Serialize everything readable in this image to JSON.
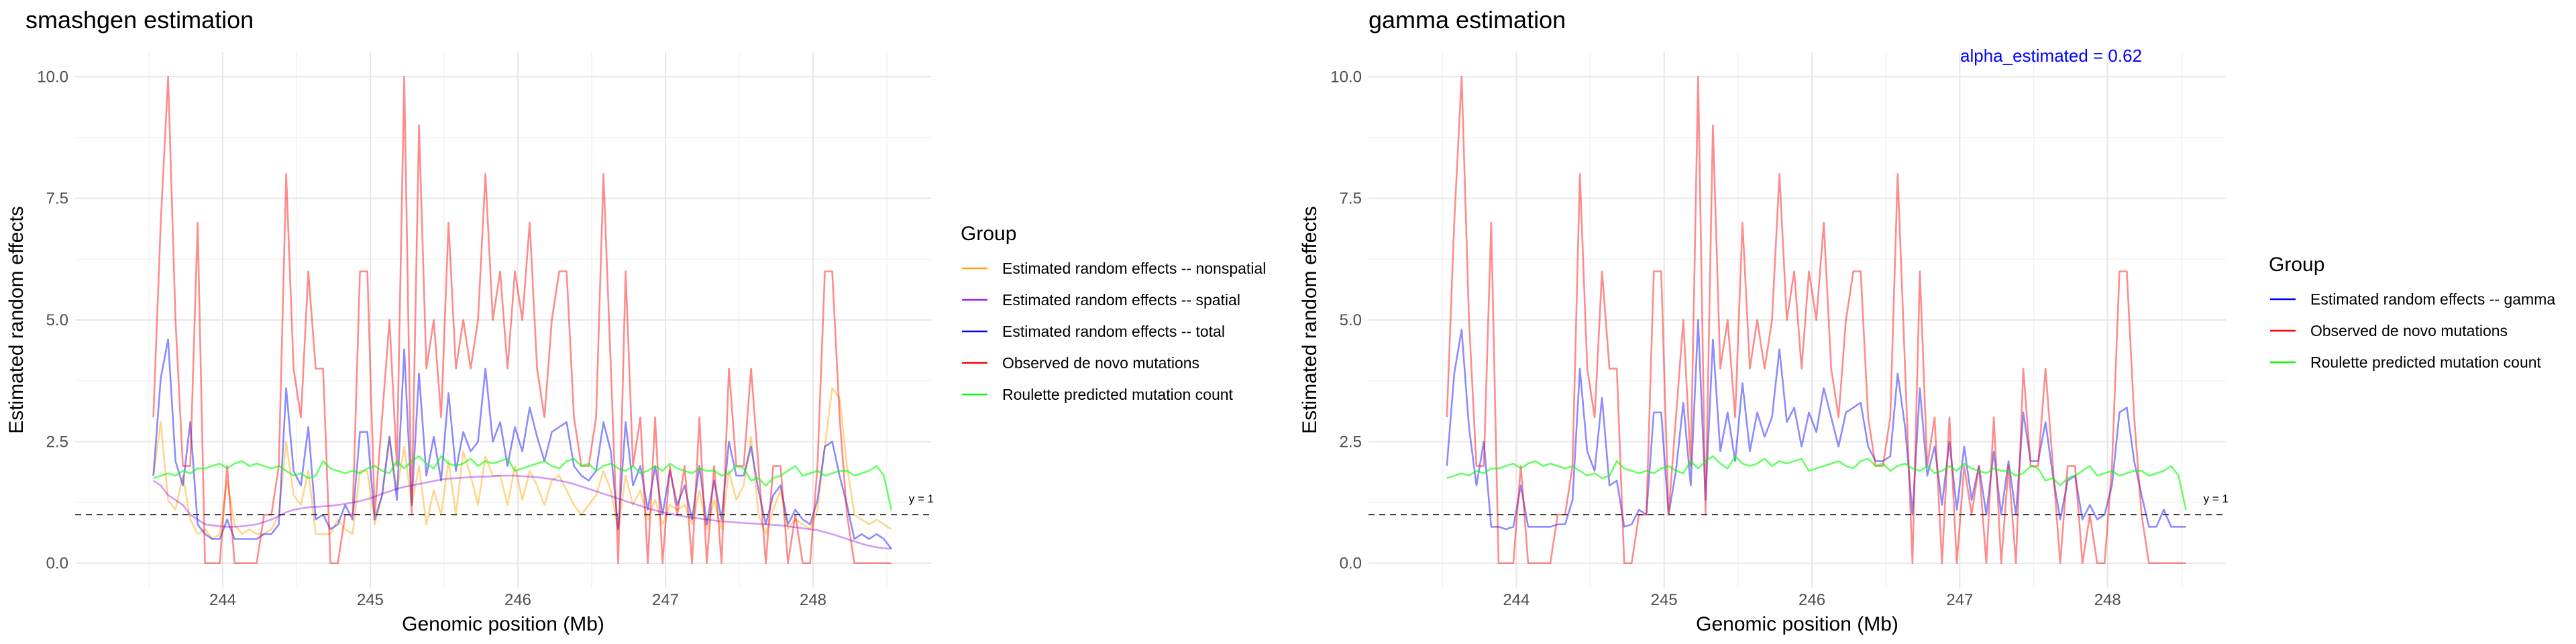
{
  "colors": {
    "nonspatial": "#ffa500",
    "spatial": "#a020f0",
    "total": "#0000ff",
    "observed": "#ff0000",
    "roulette": "#00ff00",
    "gamma": "#0000ff",
    "refline": "#333333",
    "annotation": "#0000ff"
  },
  "chart_data": [
    {
      "type": "line",
      "title": "smashgen estimation",
      "xlabel": "Genomic position (Mb)",
      "ylabel": "Estimated random effects",
      "xlim": [
        243.0,
        248.8
      ],
      "ylim": [
        -0.5,
        10.5
      ],
      "xticks": [
        244,
        245,
        246,
        247,
        248
      ],
      "yticks": [
        0.0,
        2.5,
        5.0,
        7.5,
        10.0
      ],
      "ytick_labels": [
        "0.0",
        "2.5",
        "5.0",
        "7.5",
        "10.0"
      ],
      "grid": true,
      "legend_title": "Group",
      "legend_position": "right",
      "hline": {
        "y": 1,
        "label": "y = 1",
        "style": "dashed"
      },
      "x": [
        243.53,
        243.58,
        243.63,
        243.68,
        243.73,
        243.78,
        243.83,
        243.88,
        243.93,
        243.98,
        244.03,
        244.08,
        244.13,
        244.18,
        244.23,
        244.28,
        244.33,
        244.38,
        244.43,
        244.48,
        244.53,
        244.58,
        244.63,
        244.68,
        244.73,
        244.78,
        244.83,
        244.88,
        244.93,
        244.98,
        245.03,
        245.08,
        245.13,
        245.18,
        245.23,
        245.28,
        245.33,
        245.38,
        245.43,
        245.48,
        245.53,
        245.58,
        245.63,
        245.68,
        245.73,
        245.78,
        245.83,
        245.88,
        245.93,
        245.98,
        246.03,
        246.08,
        246.13,
        246.18,
        246.23,
        246.28,
        246.33,
        246.38,
        246.43,
        246.48,
        246.53,
        246.58,
        246.63,
        246.68,
        246.73,
        246.78,
        246.83,
        246.88,
        246.93,
        246.98,
        247.03,
        247.08,
        247.13,
        247.18,
        247.23,
        247.28,
        247.33,
        247.38,
        247.43,
        247.48,
        247.53,
        247.58,
        247.63,
        247.68,
        247.73,
        247.78,
        247.83,
        247.88,
        247.93,
        247.98,
        248.03,
        248.08,
        248.13,
        248.18,
        248.23,
        248.28,
        248.33,
        248.38,
        248.43,
        248.48,
        248.53
      ],
      "series": [
        {
          "name": "Estimated random effects -- nonspatial",
          "color_key": "nonspatial",
          "values": [
            1.8,
            2.9,
            1.3,
            1.1,
            1.8,
            0.9,
            0.6,
            0.7,
            0.5,
            0.6,
            1.7,
            0.8,
            0.6,
            0.7,
            0.6,
            0.6,
            0.7,
            1.0,
            2.5,
            1.4,
            1.2,
            1.9,
            0.6,
            0.6,
            0.6,
            0.9,
            0.7,
            0.6,
            1.9,
            1.9,
            0.8,
            1.4,
            2.6,
            1.5,
            2.4,
            1.2,
            2.0,
            0.8,
            1.5,
            1.0,
            2.1,
            1.0,
            2.3,
            1.8,
            1.2,
            2.2,
            1.8,
            1.8,
            1.2,
            2.0,
            1.3,
            1.9,
            1.6,
            1.2,
            1.7,
            1.8,
            1.5,
            1.2,
            1.0,
            1.2,
            1.4,
            1.9,
            1.5,
            0.7,
            1.8,
            1.2,
            1.5,
            0.9,
            1.3,
            0.8,
            1.2,
            1.1,
            1.2,
            0.8,
            1.5,
            0.7,
            1.3,
            0.7,
            1.9,
            1.3,
            1.6,
            2.6,
            1.0,
            0.6,
            1.1,
            1.5,
            0.7,
            0.9,
            0.8,
            0.7,
            1.1,
            2.4,
            3.6,
            3.4,
            2.0,
            1.0,
            0.9,
            0.8,
            0.9,
            0.8,
            0.7
          ]
        },
        {
          "name": "Estimated random effects -- spatial",
          "color_key": "spatial",
          "values": [
            1.7,
            1.6,
            1.4,
            1.3,
            1.2,
            1.0,
            0.9,
            0.8,
            0.78,
            0.76,
            0.75,
            0.75,
            0.76,
            0.78,
            0.8,
            0.85,
            0.9,
            0.97,
            1.05,
            1.1,
            1.13,
            1.15,
            1.16,
            1.17,
            1.18,
            1.2,
            1.22,
            1.25,
            1.28,
            1.32,
            1.37,
            1.43,
            1.48,
            1.53,
            1.57,
            1.6,
            1.63,
            1.66,
            1.69,
            1.72,
            1.74,
            1.75,
            1.76,
            1.77,
            1.78,
            1.78,
            1.79,
            1.8,
            1.8,
            1.8,
            1.79,
            1.78,
            1.77,
            1.75,
            1.73,
            1.7,
            1.67,
            1.63,
            1.58,
            1.53,
            1.48,
            1.43,
            1.38,
            1.33,
            1.28,
            1.23,
            1.18,
            1.13,
            1.09,
            1.05,
            1.02,
            0.99,
            0.96,
            0.94,
            0.92,
            0.9,
            0.88,
            0.86,
            0.85,
            0.84,
            0.83,
            0.82,
            0.81,
            0.8,
            0.79,
            0.78,
            0.76,
            0.74,
            0.72,
            0.7,
            0.68,
            0.64,
            0.6,
            0.55,
            0.5,
            0.45,
            0.4,
            0.36,
            0.33,
            0.31,
            0.3
          ]
        },
        {
          "name": "Estimated random effects -- total",
          "color_key": "total",
          "values": [
            1.8,
            3.8,
            4.6,
            2.1,
            1.6,
            2.9,
            0.8,
            0.6,
            0.5,
            0.5,
            0.9,
            0.5,
            0.5,
            0.5,
            0.5,
            0.6,
            0.6,
            0.8,
            3.6,
            1.9,
            1.6,
            2.8,
            0.9,
            1.0,
            0.7,
            0.8,
            1.2,
            0.9,
            2.7,
            2.7,
            0.9,
            1.4,
            2.6,
            1.3,
            4.4,
            1.2,
            3.9,
            1.8,
            2.6,
            1.7,
            3.5,
            1.9,
            2.7,
            2.3,
            2.5,
            4.0,
            2.5,
            2.9,
            2.0,
            2.8,
            2.3,
            3.2,
            2.6,
            2.1,
            2.7,
            2.8,
            2.9,
            2.0,
            1.8,
            1.7,
            1.9,
            2.9,
            2.3,
            0.7,
            2.9,
            1.6,
            2.0,
            1.1,
            2.0,
            1.0,
            1.9,
            1.2,
            1.6,
            0.9,
            2.0,
            0.8,
            1.7,
            0.9,
            2.5,
            1.8,
            1.8,
            2.4,
            1.5,
            0.8,
            1.4,
            1.6,
            0.8,
            1.1,
            0.9,
            0.8,
            1.3,
            2.4,
            2.5,
            1.8,
            1.2,
            0.5,
            0.6,
            0.5,
            0.6,
            0.5,
            0.3
          ]
        },
        {
          "name": "Observed de novo mutations",
          "color_key": "observed",
          "values": [
            3,
            7,
            10,
            5,
            2,
            2,
            7,
            0,
            0,
            0,
            2,
            0,
            0,
            0,
            0,
            1,
            1,
            2,
            8,
            4,
            3,
            6,
            4,
            4,
            0,
            0,
            1,
            1,
            6,
            6,
            1,
            3,
            5,
            2,
            10,
            1,
            9,
            4,
            5,
            3,
            7,
            4,
            5,
            4,
            5,
            8,
            5,
            6,
            4,
            6,
            5,
            7,
            4,
            3,
            5,
            6,
            6,
            3,
            2,
            2,
            3,
            8,
            4,
            0,
            6,
            2,
            3,
            0,
            3,
            0,
            2,
            1,
            2,
            0,
            3,
            0,
            2,
            0,
            4,
            2,
            2,
            4,
            2,
            0,
            2,
            2,
            0,
            1,
            0,
            0,
            2,
            6,
            6,
            3,
            1,
            0,
            0,
            0,
            0,
            0,
            0
          ]
        },
        {
          "name": "Roulette predicted mutation count",
          "color_key": "roulette",
          "values": [
            1.75,
            1.8,
            1.85,
            1.8,
            1.9,
            1.85,
            1.95,
            1.95,
            2.0,
            2.05,
            1.95,
            2.05,
            2.1,
            2.0,
            2.05,
            2.0,
            1.95,
            2.0,
            1.9,
            1.8,
            1.85,
            1.75,
            1.8,
            2.1,
            1.95,
            1.9,
            1.85,
            1.9,
            1.85,
            1.95,
            2.0,
            1.9,
            1.85,
            2.1,
            1.95,
            2.1,
            2.2,
            2.05,
            1.95,
            2.2,
            2.05,
            2.0,
            2.05,
            2.15,
            2.0,
            2.1,
            2.05,
            2.1,
            2.15,
            1.9,
            1.95,
            2.0,
            2.05,
            2.1,
            2.0,
            1.95,
            2.1,
            2.15,
            2.0,
            2.05,
            1.9,
            2.0,
            2.05,
            1.95,
            1.9,
            2.0,
            1.85,
            1.9,
            2.0,
            1.9,
            2.05,
            1.95,
            1.9,
            1.85,
            1.95,
            1.9,
            1.9,
            1.8,
            1.85,
            2.0,
            1.95,
            1.7,
            1.75,
            1.6,
            1.75,
            1.8,
            1.9,
            2.0,
            1.8,
            1.85,
            1.9,
            1.8,
            1.85,
            1.9,
            1.9,
            1.8,
            1.85,
            1.9,
            2.0,
            1.8,
            1.1
          ]
        }
      ]
    },
    {
      "type": "line",
      "title": "gamma estimation",
      "xlabel": "Genomic position (Mb)",
      "ylabel": "Estimated random effects",
      "annotation": "alpha_estimated = 0.62",
      "xlim": [
        243.0,
        248.8
      ],
      "ylim": [
        -0.5,
        10.5
      ],
      "xticks": [
        244,
        245,
        246,
        247,
        248
      ],
      "yticks": [
        0.0,
        2.5,
        5.0,
        7.5,
        10.0
      ],
      "ytick_labels": [
        "0.0",
        "2.5",
        "5.0",
        "7.5",
        "10.0"
      ],
      "grid": true,
      "legend_title": "Group",
      "legend_position": "right",
      "hline": {
        "y": 1,
        "label": "y = 1",
        "style": "dashed"
      },
      "x": [
        243.53,
        243.58,
        243.63,
        243.68,
        243.73,
        243.78,
        243.83,
        243.88,
        243.93,
        243.98,
        244.03,
        244.08,
        244.13,
        244.18,
        244.23,
        244.28,
        244.33,
        244.38,
        244.43,
        244.48,
        244.53,
        244.58,
        244.63,
        244.68,
        244.73,
        244.78,
        244.83,
        244.88,
        244.93,
        244.98,
        245.03,
        245.08,
        245.13,
        245.18,
        245.23,
        245.28,
        245.33,
        245.38,
        245.43,
        245.48,
        245.53,
        245.58,
        245.63,
        245.68,
        245.73,
        245.78,
        245.83,
        245.88,
        245.93,
        245.98,
        246.03,
        246.08,
        246.13,
        246.18,
        246.23,
        246.28,
        246.33,
        246.38,
        246.43,
        246.48,
        246.53,
        246.58,
        246.63,
        246.68,
        246.73,
        246.78,
        246.83,
        246.88,
        246.93,
        246.98,
        247.03,
        247.08,
        247.13,
        247.18,
        247.23,
        247.28,
        247.33,
        247.38,
        247.43,
        247.48,
        247.53,
        247.58,
        247.63,
        247.68,
        247.73,
        247.78,
        247.83,
        247.88,
        247.93,
        247.98,
        248.03,
        248.08,
        248.13,
        248.18,
        248.23,
        248.28,
        248.33,
        248.38,
        248.43,
        248.48,
        248.53
      ],
      "series": [
        {
          "name": "Estimated random effects -- gamma",
          "color_key": "gamma",
          "values": [
            2.0,
            3.9,
            4.8,
            2.8,
            1.6,
            2.5,
            0.75,
            0.75,
            0.7,
            0.75,
            1.6,
            0.75,
            0.75,
            0.75,
            0.75,
            0.8,
            0.8,
            1.3,
            4.0,
            2.3,
            1.9,
            3.4,
            1.6,
            1.7,
            0.75,
            0.8,
            1.1,
            1.0,
            3.1,
            3.1,
            1.0,
            1.9,
            3.3,
            1.6,
            5.0,
            1.3,
            4.6,
            2.3,
            3.1,
            2.1,
            3.7,
            2.3,
            3.1,
            2.6,
            3.0,
            4.4,
            2.9,
            3.2,
            2.4,
            3.1,
            2.7,
            3.6,
            3.0,
            2.4,
            3.1,
            3.2,
            3.3,
            2.4,
            2.1,
            2.1,
            2.2,
            3.9,
            2.8,
            1.0,
            3.6,
            1.8,
            2.4,
            1.2,
            2.5,
            1.1,
            2.4,
            1.3,
            2.0,
            1.0,
            2.3,
            1.0,
            2.1,
            1.0,
            3.1,
            2.1,
            2.1,
            2.9,
            1.8,
            0.9,
            1.7,
            1.8,
            0.9,
            1.2,
            0.9,
            1.0,
            1.6,
            3.1,
            3.2,
            2.1,
            1.4,
            0.75,
            0.75,
            1.1,
            0.75,
            0.75,
            0.75
          ]
        },
        {
          "name": "Observed de novo mutations",
          "color_key": "observed",
          "values": [
            3,
            7,
            10,
            5,
            2,
            2,
            7,
            0,
            0,
            0,
            2,
            0,
            0,
            0,
            0,
            1,
            1,
            2,
            8,
            4,
            3,
            6,
            4,
            4,
            0,
            0,
            1,
            1,
            6,
            6,
            1,
            3,
            5,
            2,
            10,
            1,
            9,
            4,
            5,
            3,
            7,
            4,
            5,
            4,
            5,
            8,
            5,
            6,
            4,
            6,
            5,
            7,
            4,
            3,
            5,
            6,
            6,
            3,
            2,
            2,
            3,
            8,
            4,
            0,
            6,
            2,
            3,
            0,
            3,
            0,
            2,
            1,
            2,
            0,
            3,
            0,
            2,
            0,
            4,
            2,
            2,
            4,
            2,
            0,
            2,
            2,
            0,
            1,
            0,
            0,
            2,
            6,
            6,
            3,
            1,
            0,
            0,
            0,
            0,
            0,
            0
          ]
        },
        {
          "name": "Roulette predicted mutation count",
          "color_key": "roulette",
          "values": [
            1.75,
            1.8,
            1.85,
            1.8,
            1.9,
            1.85,
            1.95,
            1.95,
            2.0,
            2.05,
            1.95,
            2.05,
            2.1,
            2.0,
            2.05,
            2.0,
            1.95,
            2.0,
            1.9,
            1.8,
            1.85,
            1.75,
            1.8,
            2.1,
            1.95,
            1.9,
            1.85,
            1.9,
            1.85,
            1.95,
            2.0,
            1.9,
            1.85,
            2.1,
            1.95,
            2.1,
            2.2,
            2.05,
            1.95,
            2.2,
            2.05,
            2.0,
            2.05,
            2.15,
            2.0,
            2.1,
            2.05,
            2.1,
            2.15,
            1.9,
            1.95,
            2.0,
            2.05,
            2.1,
            2.0,
            1.95,
            2.1,
            2.15,
            2.0,
            2.05,
            1.9,
            2.0,
            2.05,
            1.95,
            1.9,
            2.0,
            1.85,
            1.9,
            2.0,
            1.9,
            2.05,
            1.95,
            1.9,
            1.85,
            1.95,
            1.9,
            1.9,
            1.8,
            1.85,
            2.0,
            1.95,
            1.7,
            1.75,
            1.6,
            1.75,
            1.8,
            1.9,
            2.0,
            1.8,
            1.85,
            1.9,
            1.8,
            1.85,
            1.9,
            1.9,
            1.8,
            1.85,
            1.9,
            2.0,
            1.8,
            1.1
          ]
        }
      ]
    }
  ]
}
